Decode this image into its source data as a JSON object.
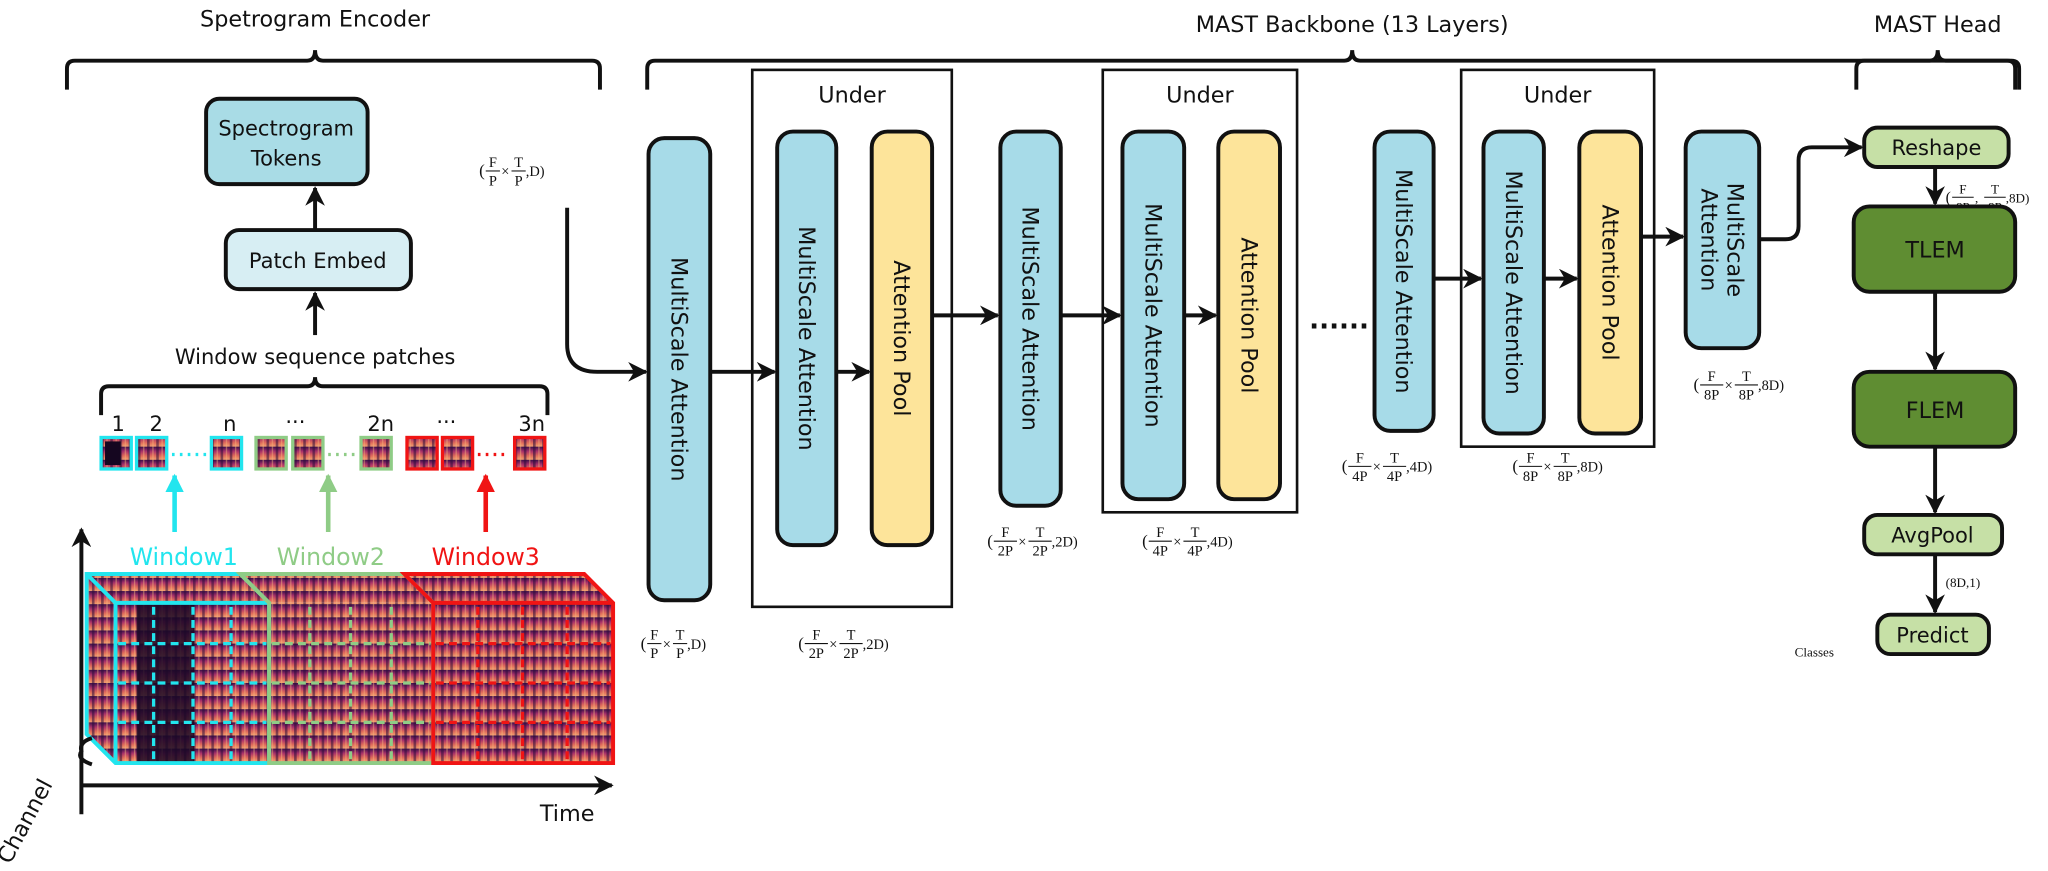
{
  "titles": {
    "encoder": "Spetrogram  Encoder",
    "backbone": "MAST Backbone (13 Layers)",
    "head": "MAST Head"
  },
  "encoder": {
    "tokens_line1": "Spectrogram",
    "tokens_line2": "Tokens",
    "patch_embed": "Patch Embed",
    "patches_label": "Window sequence patches",
    "patch_numbers": [
      "1",
      "2",
      "n",
      "...",
      "2n",
      "...",
      "3n"
    ],
    "windows": [
      {
        "label": "Window1",
        "color": "#22e5ee"
      },
      {
        "label": "Window2",
        "color": "#8fcc86"
      },
      {
        "label": "Window3",
        "color": "#f01414"
      }
    ],
    "axis_x": "Time",
    "axis_y": "Channel",
    "output_shape": {
      "open": "(",
      "terms": [
        {
          "n": "F",
          "d": "P"
        },
        {
          "n": "T",
          "d": "P"
        }
      ],
      "sep": "×",
      "tail": ",D)"
    }
  },
  "backbone": {
    "under_label": "Under",
    "msa": "MultiScale Attention",
    "msa_line1": "MultiScale",
    "msa_line2": "Attention",
    "pool": "Attention Pool",
    "ellipsis": "......",
    "shapes": [
      {
        "open": "(",
        "terms": [
          {
            "n": "F",
            "d": "P"
          },
          {
            "n": "T",
            "d": "P"
          }
        ],
        "sep": "×",
        "tail": ",D)"
      },
      {
        "open": "(",
        "terms": [
          {
            "n": "F",
            "d": "2P"
          },
          {
            "n": "T",
            "d": "2P"
          }
        ],
        "sep": "×",
        "tail": ",2D)"
      },
      {
        "open": "(",
        "terms": [
          {
            "n": "F",
            "d": "2P"
          },
          {
            "n": "T",
            "d": "2P"
          }
        ],
        "sep": "×",
        "tail": ",2D)"
      },
      {
        "open": "(",
        "terms": [
          {
            "n": "F",
            "d": "4P"
          },
          {
            "n": "T",
            "d": "4P"
          }
        ],
        "sep": "×",
        "tail": ",4D)"
      },
      {
        "open": "(",
        "terms": [
          {
            "n": "F",
            "d": "4P"
          },
          {
            "n": "T",
            "d": "4P"
          }
        ],
        "sep": "×",
        "tail": ",4D)"
      },
      {
        "open": "(",
        "terms": [
          {
            "n": "F",
            "d": "8P"
          },
          {
            "n": "T",
            "d": "8P"
          }
        ],
        "sep": "×",
        "tail": ",8D)"
      },
      {
        "open": "(",
        "terms": [
          {
            "n": "F",
            "d": "8P"
          },
          {
            "n": "T",
            "d": "8P"
          }
        ],
        "sep": "×",
        "tail": ",8D)"
      }
    ]
  },
  "head": {
    "reshape": "Reshape",
    "tlem": "TLEM",
    "flem": "FLEM",
    "avgpool": "AvgPool",
    "predict": "Predict",
    "reshape_shape": {
      "open": "(",
      "terms": [
        {
          "n": "F",
          "d": "8P"
        },
        {
          "n": "T",
          "d": "8P"
        }
      ],
      "sep": ",",
      "tail": ",8D)"
    },
    "pool_shape": "(8D,1)",
    "classes": "Classes"
  },
  "colors": {
    "attention_block": "#a7dbe8",
    "pool_block": "#fde49a",
    "tokens_block": "#a9dce6",
    "patch_embed_block": "#d7eef3",
    "head_light": "#c6e0a6",
    "head_dark": "#5f8d32"
  }
}
